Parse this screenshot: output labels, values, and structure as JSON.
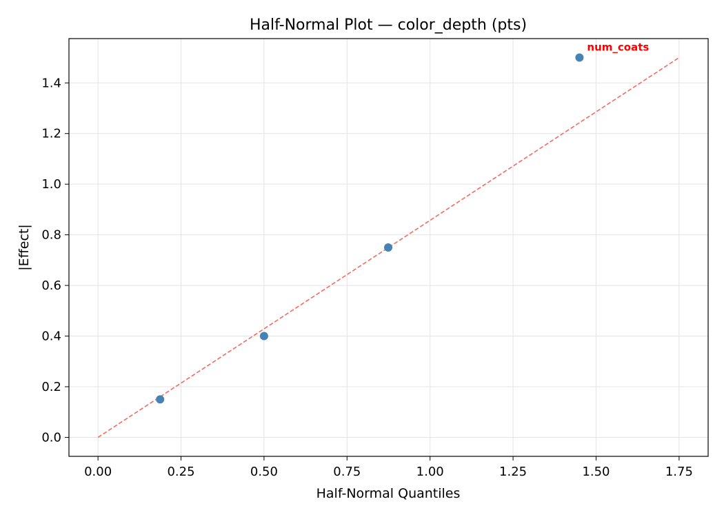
{
  "chart_data": {
    "type": "scatter",
    "title": "Half-Normal Plot — color_depth (pts)",
    "xlabel": "Half-Normal Quantiles",
    "ylabel": "|Effect|",
    "xlim": [
      -0.0875,
      1.8375
    ],
    "ylim": [
      -0.075,
      1.575
    ],
    "xticks": [
      0.0,
      0.25,
      0.5,
      0.75,
      1.0,
      1.25,
      1.5,
      1.75
    ],
    "xtick_labels": [
      "0.00",
      "0.25",
      "0.50",
      "0.75",
      "1.00",
      "1.25",
      "1.50",
      "1.75"
    ],
    "yticks": [
      0.0,
      0.2,
      0.4,
      0.6,
      0.8,
      1.0,
      1.2,
      1.4
    ],
    "ytick_labels": [
      "0.0",
      "0.2",
      "0.4",
      "0.6",
      "0.8",
      "1.0",
      "1.2",
      "1.4"
    ],
    "grid": true,
    "points": [
      {
        "x": 0.187,
        "y": 0.15
      },
      {
        "x": 0.5,
        "y": 0.4
      },
      {
        "x": 0.874,
        "y": 0.75
      },
      {
        "x": 1.45,
        "y": 1.5
      }
    ],
    "reference_line": {
      "x": [
        0.0,
        1.75
      ],
      "y": [
        0.0,
        1.5
      ],
      "style": "dashed"
    },
    "annotations": [
      {
        "text": "num_coats",
        "x": 1.45,
        "y": 1.5
      }
    ],
    "colors": {
      "point": "#4682b4",
      "reference_line": "#f26b63",
      "annotation": "#ff0000",
      "grid": "#e3e3e3",
      "axis": "#000000"
    }
  }
}
